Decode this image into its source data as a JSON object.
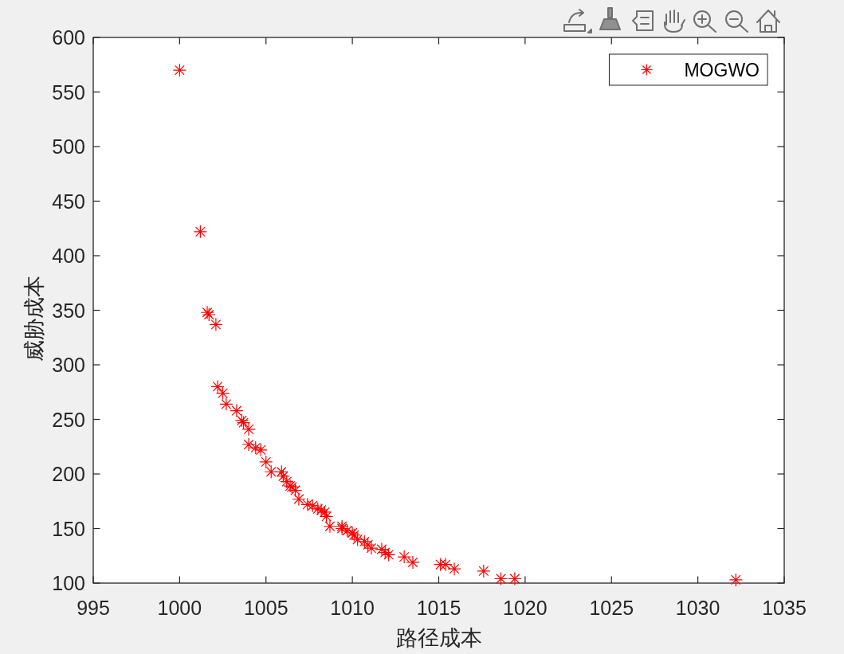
{
  "chart_data": {
    "type": "scatter",
    "xlabel": "路径成本",
    "ylabel": "威胁成本",
    "xlim": [
      995,
      1035
    ],
    "ylim": [
      100,
      600
    ],
    "xticks": [
      995,
      1000,
      1005,
      1010,
      1015,
      1020,
      1025,
      1030,
      1035
    ],
    "yticks": [
      100,
      150,
      200,
      250,
      300,
      350,
      400,
      450,
      500,
      550,
      600
    ],
    "legend": "top right",
    "marker": "cross",
    "series": [
      {
        "name": "MOGWO",
        "color": "#ff0000",
        "x": [
          1000.0,
          1001.2,
          1001.6,
          1001.7,
          1002.1,
          1002.2,
          1002.5,
          1002.7,
          1003.3,
          1003.6,
          1003.7,
          1004.0,
          1004.0,
          1004.4,
          1004.7,
          1005.0,
          1005.3,
          1005.9,
          1006.0,
          1006.2,
          1006.4,
          1006.5,
          1006.7,
          1006.9,
          1007.4,
          1007.7,
          1008.0,
          1008.2,
          1008.4,
          1008.5,
          1008.7,
          1009.4,
          1009.4,
          1009.7,
          1010.0,
          1010.1,
          1010.3,
          1010.7,
          1010.9,
          1011.1,
          1011.7,
          1011.9,
          1012.1,
          1013.0,
          1013.5,
          1015.1,
          1015.4,
          1015.9,
          1017.6,
          1018.6,
          1019.4,
          1032.2
        ],
        "values": [
          570,
          422,
          348,
          346,
          337,
          280,
          274,
          264,
          258,
          249,
          247,
          241,
          227,
          224,
          222,
          211,
          202,
          202,
          198,
          193,
          189,
          188,
          185,
          177,
          172,
          171,
          168,
          167,
          165,
          161,
          152,
          152,
          150,
          148,
          146,
          144,
          140,
          138,
          135,
          132,
          131,
          128,
          126,
          124,
          119,
          117,
          117,
          113,
          111,
          104,
          104,
          103
        ]
      }
    ]
  }
}
